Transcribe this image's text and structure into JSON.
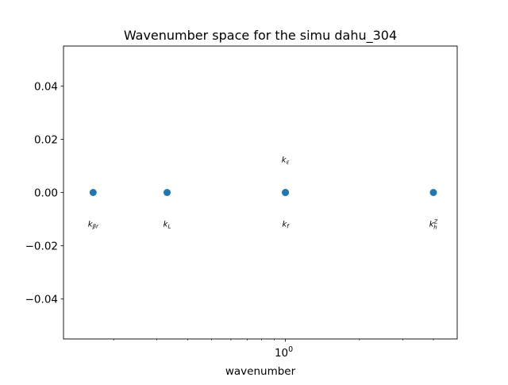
{
  "chart_data": {
    "type": "scatter",
    "title": "Wavenumber space for the simu dahu_304",
    "xlabel": "wavenumber",
    "ylabel": "",
    "xscale": "log",
    "xlim": [
      0.125,
      5.0
    ],
    "ylim": [
      -0.055,
      0.055
    ],
    "grid": false,
    "y_ticks": [
      {
        "value": 0.04,
        "label": "0.04"
      },
      {
        "value": 0.02,
        "label": "0.02"
      },
      {
        "value": 0.0,
        "label": "0.00"
      },
      {
        "value": -0.02,
        "label": "−0.02"
      },
      {
        "value": -0.04,
        "label": "−0.04"
      }
    ],
    "x_major_ticks": [
      {
        "value": 1.0,
        "base": "10",
        "exponent": "0"
      }
    ],
    "x_minor_ticks": [
      0.2,
      0.3,
      0.4,
      0.5,
      0.6,
      0.7,
      0.8,
      0.9,
      2,
      3,
      4
    ],
    "points": [
      {
        "name": "k_beta_r",
        "x": 0.165,
        "y": 0.0,
        "label_base": "k",
        "label_sub": "βr",
        "label_sup": "",
        "label_position": "below"
      },
      {
        "name": "k_L",
        "x": 0.33,
        "y": 0.0,
        "label_base": "k",
        "label_sub": "L",
        "label_sup": "",
        "label_position": "below"
      },
      {
        "name": "k_f",
        "x": 1.0,
        "y": 0.0,
        "label_base": "k",
        "label_sub": "f",
        "label_sup": "",
        "label_position": "below"
      },
      {
        "name": "k_epsilon",
        "x": 1.0,
        "y": 0.0,
        "label_base": "k",
        "label_sub": "ε",
        "label_sup": "",
        "label_position": "above"
      },
      {
        "name": "k_h_z",
        "x": 4.0,
        "y": 0.0,
        "label_base": "k",
        "label_sub": "h",
        "label_sup": "Z",
        "label_position": "below"
      }
    ],
    "marker_color": "#1f77b4"
  }
}
